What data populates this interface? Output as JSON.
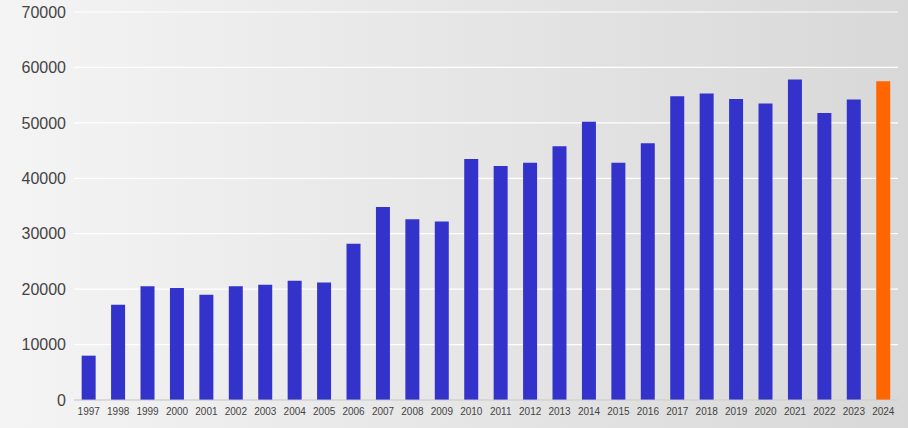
{
  "chart_data": {
    "type": "bar",
    "categories": [
      "1997",
      "1998",
      "1999",
      "2000",
      "2001",
      "2002",
      "2003",
      "2004",
      "2005",
      "2006",
      "2007",
      "2008",
      "2009",
      "2010",
      "2011",
      "2012",
      "2013",
      "2014",
      "2015",
      "2016",
      "2017",
      "2018",
      "2019",
      "2020",
      "2021",
      "2022",
      "2023",
      "2024"
    ],
    "values": [
      8000,
      17200,
      20500,
      20200,
      19000,
      20500,
      20800,
      21500,
      21200,
      28200,
      34800,
      32600,
      32200,
      43500,
      42200,
      42800,
      45800,
      50200,
      42800,
      46300,
      54800,
      55300,
      54300,
      53500,
      57800,
      51800,
      54200,
      57500
    ],
    "colors": [
      "#3333cc",
      "#3333cc",
      "#3333cc",
      "#3333cc",
      "#3333cc",
      "#3333cc",
      "#3333cc",
      "#3333cc",
      "#3333cc",
      "#3333cc",
      "#3333cc",
      "#3333cc",
      "#3333cc",
      "#3333cc",
      "#3333cc",
      "#3333cc",
      "#3333cc",
      "#3333cc",
      "#3333cc",
      "#3333cc",
      "#3333cc",
      "#3333cc",
      "#3333cc",
      "#3333cc",
      "#3333cc",
      "#3333cc",
      "#3333cc",
      "#ff6600"
    ],
    "ylim": [
      0,
      70000
    ],
    "yticks": [
      0,
      10000,
      20000,
      30000,
      40000,
      50000,
      60000,
      70000
    ],
    "grid": true
  }
}
